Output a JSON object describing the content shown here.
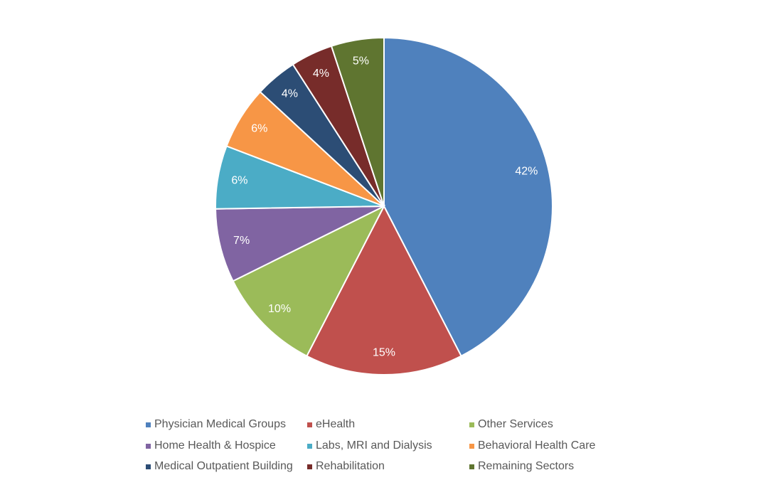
{
  "chart_data": {
    "type": "pie",
    "categories": [
      "Physician Medical Groups",
      "eHealth",
      "Other Services",
      "Home Health & Hospice",
      "Labs, MRI and Dialysis",
      "Behavioral Health Care",
      "Medical Outpatient Building",
      "Rehabilitation",
      "Remaining Sectors"
    ],
    "values": [
      42,
      15,
      10,
      7,
      6,
      6,
      4,
      4,
      5
    ],
    "labels": [
      "42%",
      "15%",
      "10%",
      "7%",
      "6%",
      "6%",
      "4%",
      "4%",
      "5%"
    ],
    "colors": [
      "#4f81bd",
      "#c0504d",
      "#9bbb59",
      "#8064a2",
      "#4bacc6",
      "#f79646",
      "#2c4d75",
      "#772c2a",
      "#5f7530"
    ],
    "start": "12 o'clock, clockwise",
    "legend_position": "bottom"
  }
}
